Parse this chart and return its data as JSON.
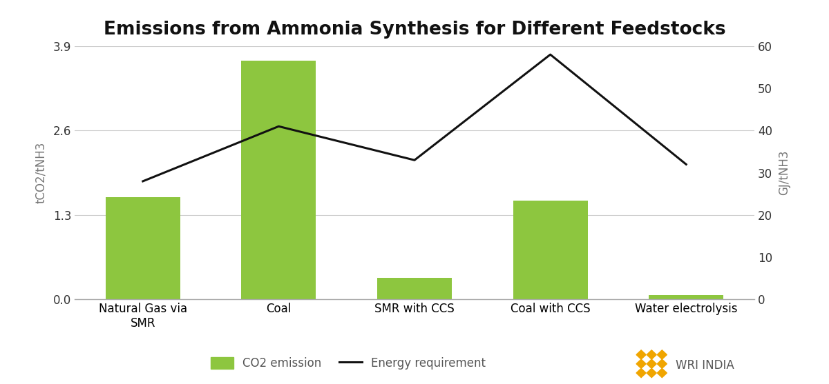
{
  "title": "Emissions from Ammonia Synthesis for Different Feedstocks",
  "categories": [
    "Natural Gas via\nSMR",
    "Coal",
    "SMR with CCS",
    "Coal with CCS",
    "Water electrolysis"
  ],
  "co2_values": [
    1.58,
    3.68,
    0.33,
    1.52,
    0.07
  ],
  "energy_values": [
    28,
    41,
    33,
    58,
    32
  ],
  "bar_color": "#8dc63f",
  "line_color": "#111111",
  "ylabel_left": "tCO2/tNH3",
  "ylabel_right": "GJ/tNH3",
  "ylim_left": [
    0,
    3.9
  ],
  "ylim_right": [
    0,
    60
  ],
  "yticks_left": [
    0,
    1.3,
    2.6,
    3.9
  ],
  "yticks_right": [
    0,
    10,
    20,
    30,
    40,
    50,
    60
  ],
  "legend_co2": "CO2 emission",
  "legend_energy": "Energy requirement",
  "background_color": "#ffffff",
  "title_fontsize": 19,
  "axis_label_fontsize": 12,
  "tick_fontsize": 12,
  "legend_fontsize": 12,
  "bar_width": 0.55,
  "gold_color": "#F0A500"
}
